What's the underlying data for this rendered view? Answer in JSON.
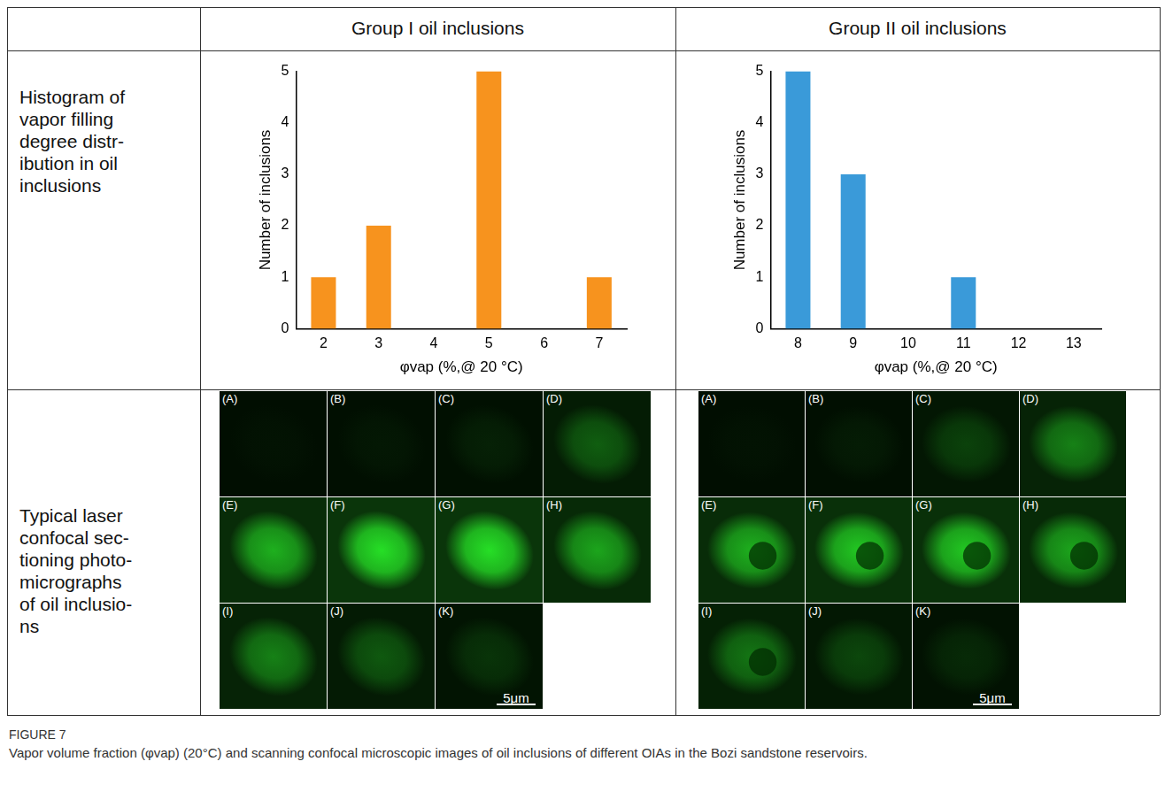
{
  "table": {
    "column_heads": [
      "Group I oil inclusions",
      "Group II oil inclusions"
    ],
    "rows": [
      {
        "label_lines": [
          "Histogram of",
          "vapor filling",
          "degree distr-",
          "ibution in oil",
          "inclusions"
        ]
      },
      {
        "label_lines": [
          "Typical laser",
          "confocal sec-",
          "tioning photo-",
          "micrographs",
          "of oil inclusio-",
          "ns"
        ]
      }
    ]
  },
  "chart_data": [
    {
      "type": "bar",
      "title": "Group I oil inclusions",
      "categories": [
        "2",
        "3",
        "4",
        "5",
        "6",
        "7"
      ],
      "values": [
        1,
        2,
        0,
        5,
        0,
        1
      ],
      "color": "#f7931e",
      "x_label": "φvap (%,@ 20 °C)",
      "y_label": "Number of inclusions",
      "ylim": [
        0,
        5
      ],
      "yticks": [
        0,
        1,
        2,
        3,
        4,
        5
      ],
      "grid": false
    },
    {
      "type": "bar",
      "title": "Group II oil inclusions",
      "categories": [
        "8",
        "9",
        "10",
        "11",
        "12",
        "13"
      ],
      "values": [
        5,
        3,
        0,
        1,
        0,
        0
      ],
      "color": "#3a9ad9",
      "x_label": "φvap (%,@ 20 °C)",
      "y_label": "Number of inclusions",
      "ylim": [
        0,
        5
      ],
      "yticks": [
        0,
        1,
        2,
        3,
        4,
        5
      ],
      "grid": false
    }
  ],
  "micrographs": [
    {
      "panels": [
        "(A)",
        "(B)",
        "(C)",
        "(D)",
        "(E)",
        "(F)",
        "(G)",
        "(H)",
        "(I)",
        "(J)",
        "(K)"
      ],
      "scale_bar": "5μm"
    },
    {
      "panels": [
        "(A)",
        "(B)",
        "(C)",
        "(D)",
        "(E)",
        "(F)",
        "(G)",
        "(H)",
        "(I)",
        "(J)",
        "(K)"
      ],
      "scale_bar": "5μm"
    }
  ],
  "caption": {
    "label": "FIGURE 7",
    "text": "Vapor volume fraction (φvap) (20°C) and scanning confocal microscopic images of oil inclusions of different OIAs in the Bozi sandstone reservoirs."
  }
}
